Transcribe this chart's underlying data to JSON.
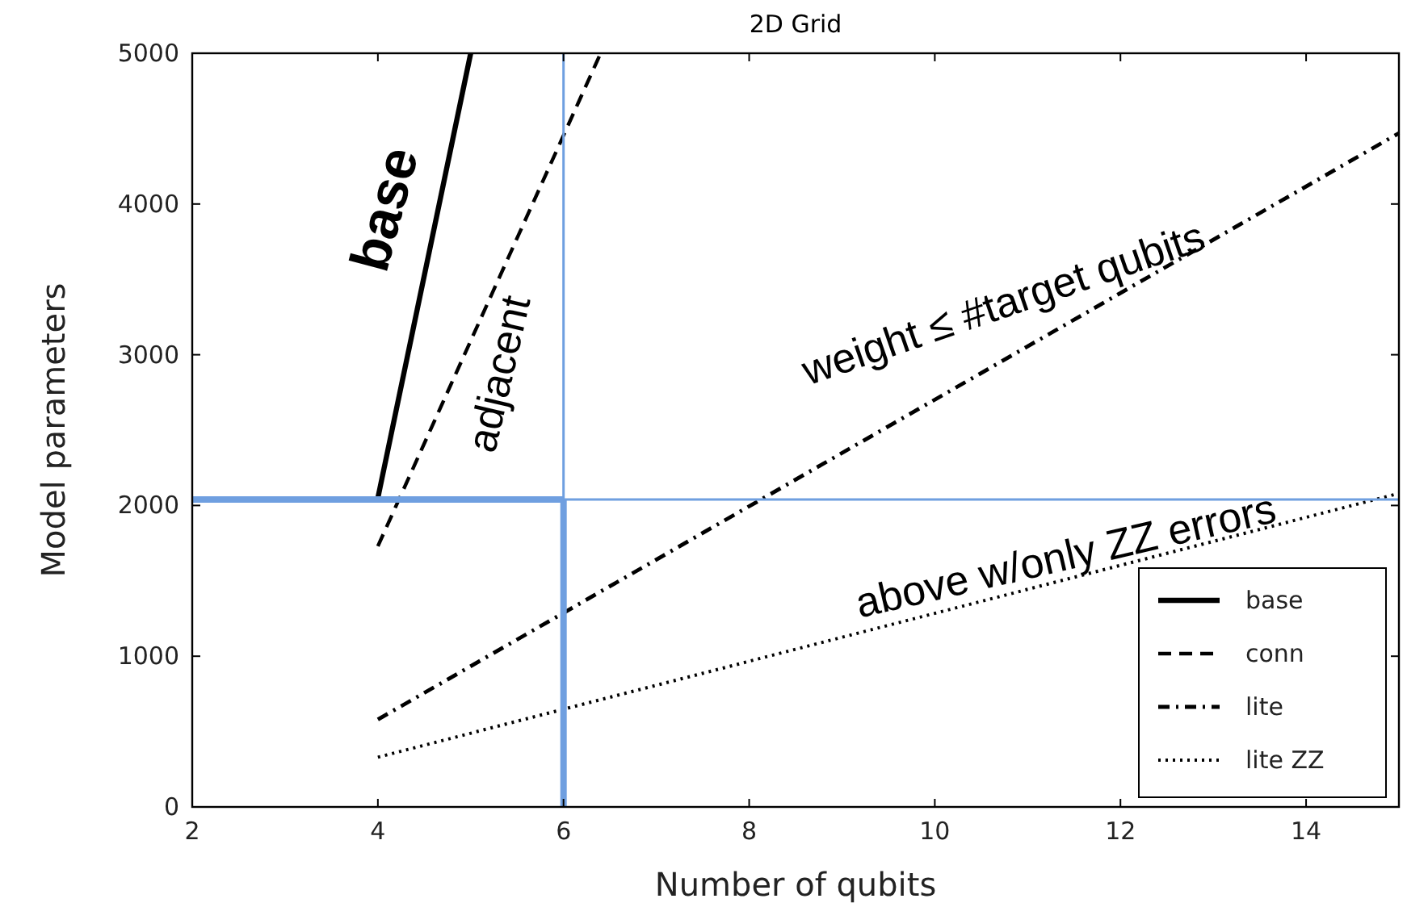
{
  "chart_data": {
    "type": "line",
    "title": "2D Grid",
    "xlabel": "Number of qubits",
    "ylabel": "Model parameters",
    "xlim": [
      2,
      15
    ],
    "xticks": [
      2,
      4,
      6,
      8,
      10,
      12,
      14
    ],
    "ylim": [
      0,
      5000
    ],
    "yticks": [
      0,
      1000,
      2000,
      3000,
      4000,
      5000
    ],
    "grid": false,
    "legend": "bottom right",
    "marker": "none",
    "series": [
      {
        "name": "base",
        "color": "#000000",
        "line_style": "solid",
        "x": [
          4,
          5
        ],
        "values": [
          2050,
          5000
        ]
      },
      {
        "name": "conn",
        "color": "#000000",
        "line_style": "dashed",
        "x": [
          4,
          6.4
        ],
        "values": [
          1730,
          5000
        ]
      },
      {
        "name": "lite",
        "color": "#000000",
        "line_style": "dashdot",
        "x": [
          4,
          15
        ],
        "values": [
          580,
          4470
        ]
      },
      {
        "name": "lite ZZ",
        "color": "#000000",
        "line_style": "dotted",
        "x": [
          4,
          15
        ],
        "values": [
          330,
          2080
        ]
      }
    ],
    "ref_lines": [
      {
        "axis": "x",
        "value": 6,
        "color": "#6f9fe0"
      },
      {
        "axis": "y",
        "value": 2040,
        "color": "#6f9fe0"
      }
    ],
    "annotations": [
      {
        "text": "base",
        "x": 4.6,
        "y": 3820
      },
      {
        "text": "adjacent",
        "x": 5.3,
        "y": 3500
      },
      {
        "text": "weight ≤ #target qubits",
        "x": 10,
        "y": 2700
      },
      {
        "text": "above w/only ZZ errors",
        "x": 11,
        "y": 1443
      }
    ]
  }
}
